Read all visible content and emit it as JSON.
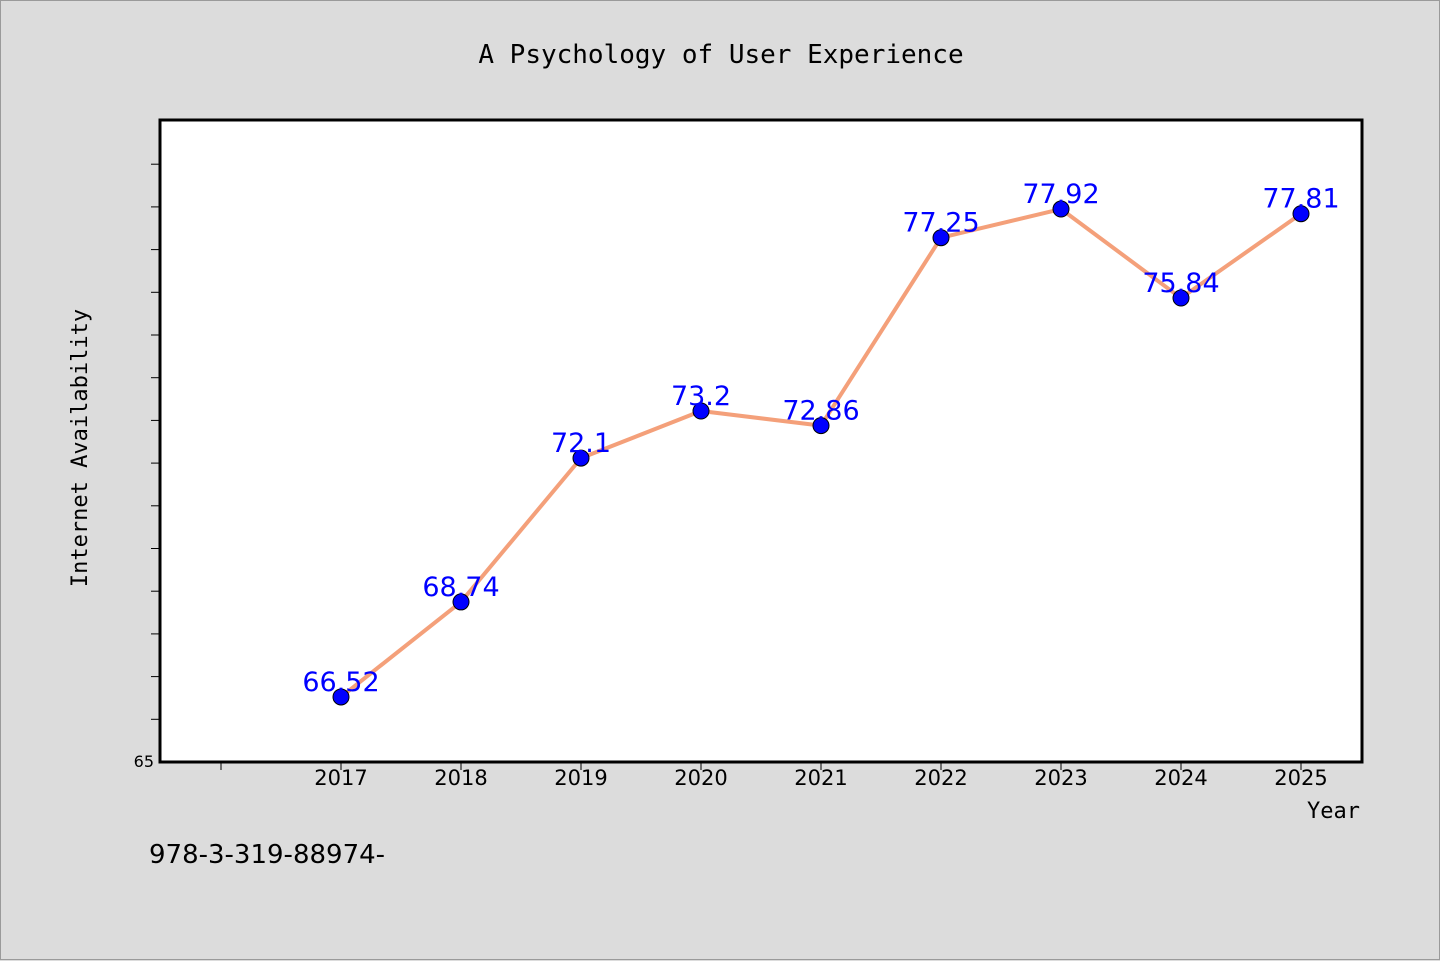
{
  "chart_data": {
    "type": "line",
    "title": "A Psychology of User Experience",
    "xlabel": "Year",
    "ylabel": "Internet Availability",
    "categories": [
      "2017",
      "2018",
      "2019",
      "2020",
      "2021",
      "2022",
      "2023",
      "2024",
      "2025"
    ],
    "series": [
      {
        "values": [
          66.52,
          68.74,
          72.1,
          73.2,
          72.86,
          77.25,
          77.92,
          75.84,
          77.81
        ],
        "labels": [
          "66.52",
          "68.74",
          "72.1",
          "73.2",
          "72.86",
          "77.25",
          "77.92",
          "75.84",
          "77.81"
        ],
        "line_color": "#f4a07a",
        "marker_color": "#0000ff"
      }
    ],
    "y_tick_labels": [
      "65"
    ],
    "ylim": [
      65,
      80
    ],
    "grid": false,
    "footnote": "978-3-319-88974-"
  },
  "colors": {
    "figure_bg": "#dcdcdc",
    "plot_bg": "#ffffff",
    "label_color": "#0000ff",
    "text_color": "#000000"
  }
}
